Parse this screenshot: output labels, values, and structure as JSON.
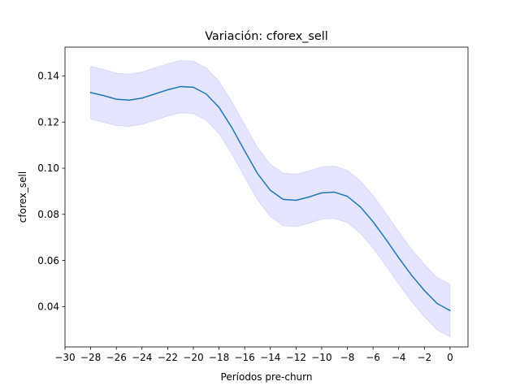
{
  "chart_data": {
    "type": "line",
    "title": "Variación: cforex_sell",
    "xlabel": "Períodos pre-churn",
    "ylabel": "cforex_sell",
    "xlim": [
      -30,
      1.4
    ],
    "ylim": [
      0.0225,
      0.1525
    ],
    "xticks": [
      -30,
      -28,
      -26,
      -24,
      -22,
      -20,
      -18,
      -16,
      -14,
      -12,
      -10,
      -8,
      -6,
      -4,
      -2,
      0
    ],
    "xtick_labels": [
      "−30",
      "−28",
      "−26",
      "−24",
      "−22",
      "−20",
      "−18",
      "−16",
      "−14",
      "−12",
      "−10",
      "−8",
      "−6",
      "−4",
      "−2",
      "0"
    ],
    "yticks": [
      0.04,
      0.06,
      0.08,
      0.1,
      0.12,
      0.14
    ],
    "ytick_labels": [
      "0.04",
      "0.06",
      "0.08",
      "0.10",
      "0.12",
      "0.14"
    ],
    "grid": false,
    "colors": {
      "line": "#1f77b4",
      "band": "#0000ff"
    },
    "x": [
      -28,
      -27,
      -26,
      -25,
      -24,
      -23,
      -22,
      -21,
      -20,
      -19,
      -18,
      -17,
      -16,
      -15,
      -14,
      -13,
      -12,
      -11,
      -10,
      -9,
      -8,
      -7,
      -6,
      -5,
      -4,
      -3,
      -2,
      -1,
      0
    ],
    "series": [
      {
        "values": [
          0.1328,
          0.1315,
          0.1299,
          0.1295,
          0.1304,
          0.1322,
          0.134,
          0.1354,
          0.1351,
          0.1322,
          0.1264,
          0.1176,
          0.1075,
          0.0977,
          0.0904,
          0.0865,
          0.0861,
          0.0875,
          0.0893,
          0.0896,
          0.0878,
          0.0833,
          0.0768,
          0.0692,
          0.0612,
          0.0536,
          0.047,
          0.0413,
          0.0383
        ],
        "lower": [
          0.1213,
          0.1199,
          0.1185,
          0.1181,
          0.119,
          0.1208,
          0.1226,
          0.124,
          0.1237,
          0.1208,
          0.115,
          0.1062,
          0.0961,
          0.0863,
          0.079,
          0.0751,
          0.0747,
          0.0761,
          0.0779,
          0.0782,
          0.0764,
          0.0719,
          0.0654,
          0.0578,
          0.0498,
          0.0422,
          0.0356,
          0.0299,
          0.0269
        ],
        "upper": [
          0.1441,
          0.1428,
          0.1412,
          0.1408,
          0.1417,
          0.1435,
          0.1453,
          0.1467,
          0.1464,
          0.1435,
          0.1377,
          0.1289,
          0.1188,
          0.109,
          0.1017,
          0.0978,
          0.0974,
          0.0988,
          0.1006,
          0.1009,
          0.0991,
          0.0946,
          0.0881,
          0.0805,
          0.0725,
          0.0649,
          0.0583,
          0.0526,
          0.0496
        ]
      }
    ]
  }
}
